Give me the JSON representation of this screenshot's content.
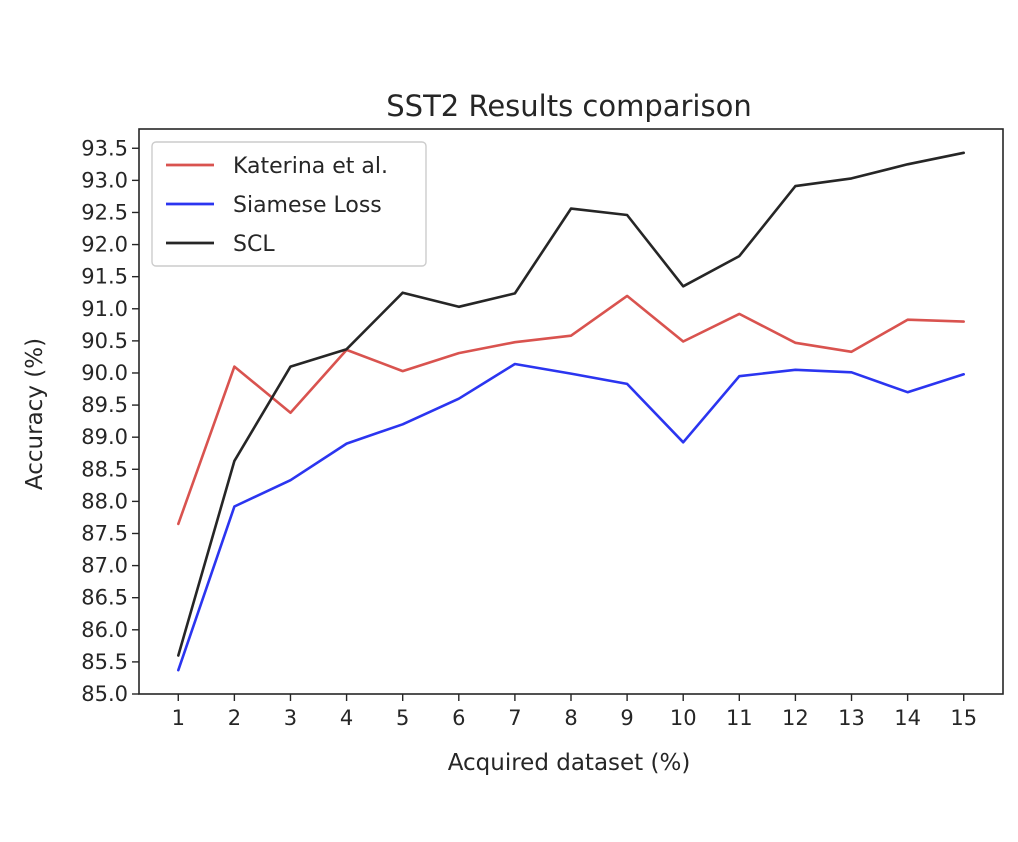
{
  "chart_data": {
    "type": "line",
    "title": "SST2 Results comparison",
    "xlabel": "Acquired dataset (%)",
    "ylabel": "Accuracy (%)",
    "x": [
      1,
      2,
      3,
      4,
      5,
      6,
      7,
      8,
      9,
      10,
      11,
      12,
      13,
      14,
      15
    ],
    "xticks": [
      "1",
      "2",
      "3",
      "4",
      "5",
      "6",
      "7",
      "8",
      "9",
      "10",
      "11",
      "12",
      "13",
      "14",
      "15"
    ],
    "yticks": [
      "85.0",
      "85.5",
      "86.0",
      "86.5",
      "87.0",
      "87.5",
      "88.0",
      "88.5",
      "89.0",
      "89.5",
      "90.0",
      "90.5",
      "91.0",
      "91.5",
      "92.0",
      "92.5",
      "93.0",
      "93.5"
    ],
    "xlim": [
      0.3,
      15.7
    ],
    "ylim": [
      85.0,
      93.8
    ],
    "grid": false,
    "legend_position": "upper-left",
    "series": [
      {
        "name": "Katerina et al.",
        "color": "#d9534f",
        "values": [
          87.65,
          90.1,
          89.38,
          90.36,
          90.03,
          90.31,
          90.48,
          90.58,
          91.2,
          90.49,
          90.92,
          90.47,
          90.33,
          90.83,
          90.8
        ]
      },
      {
        "name": "Siamese Loss",
        "color": "#2b35f0",
        "values": [
          85.37,
          87.92,
          88.33,
          88.9,
          89.2,
          89.6,
          90.14,
          89.99,
          89.83,
          88.92,
          89.95,
          90.05,
          90.01,
          89.7,
          89.98
        ]
      },
      {
        "name": "SCL",
        "color": "#262626",
        "values": [
          85.6,
          88.63,
          90.1,
          90.37,
          91.25,
          91.03,
          91.24,
          92.56,
          92.46,
          91.35,
          91.82,
          92.91,
          93.03,
          93.25,
          93.43
        ]
      }
    ]
  }
}
